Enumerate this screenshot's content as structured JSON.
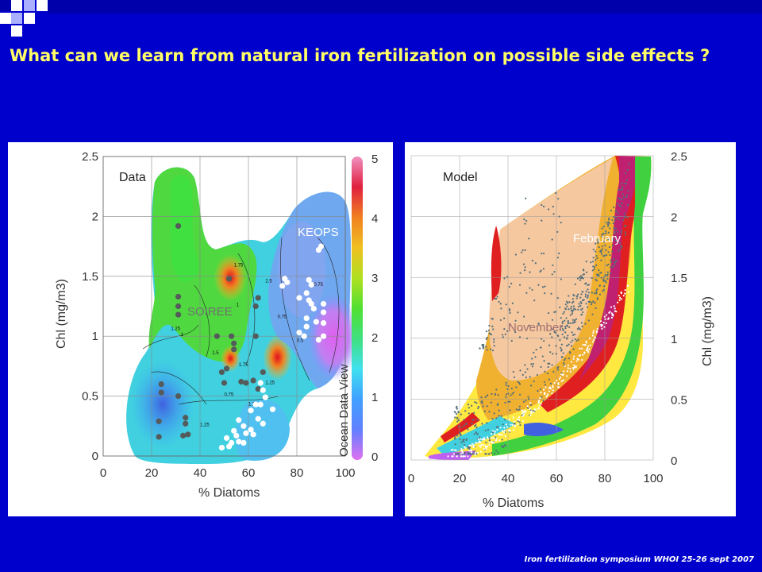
{
  "slide": {
    "title": "What can we learn from natural iron fertilization on possible side effects ?",
    "footer": "Iron fertilization symposium WHOI 25-26 sept 2007"
  },
  "colors": {
    "background": "#0000cc",
    "title": "#ffff66",
    "top_bar": "#0000aa"
  },
  "chart_data": [
    {
      "type": "scatter",
      "panel_label": "Data",
      "xlabel": "% Diatoms",
      "ylabel": "Chl (mg/m3)",
      "xlim": [
        0,
        100
      ],
      "ylim": [
        0,
        2.5
      ],
      "x_ticks": [
        "0",
        "20",
        "40",
        "60",
        "80",
        "100"
      ],
      "y_ticks": [
        "0",
        "0.5",
        "1",
        "1.5",
        "2",
        "2.5"
      ],
      "colorbar_ticks": [
        "0",
        "1",
        "2",
        "3",
        "4",
        "5"
      ],
      "colorbar_side_label": "Ocean Data View",
      "grid": true,
      "region_labels": [
        "SOIREE",
        "KEOPS"
      ],
      "contour_labels": [
        "0.75",
        "1",
        "1.25",
        "1.5",
        "1.75",
        "2.5",
        "1.75",
        "1.25",
        "0.5",
        "0.75",
        "1.75",
        "1.25",
        "1",
        "0.75"
      ],
      "series": [
        {
          "name": "SOIREE",
          "marker": "dark grey",
          "points": [
            [
              31,
              1.92
            ],
            [
              31,
              1.33
            ],
            [
              31,
              1.25
            ],
            [
              31,
              1.18
            ],
            [
              31,
              0.5
            ],
            [
              24,
              0.6
            ],
            [
              24,
              0.53
            ],
            [
              23,
              0.29
            ],
            [
              23,
              0.16
            ],
            [
              34,
              0.32
            ],
            [
              34,
              0.27
            ],
            [
              35,
              0.18
            ],
            [
              33,
              0.17
            ],
            [
              52,
              1.48
            ],
            [
              47,
              1.0
            ],
            [
              53,
              1.0
            ],
            [
              54,
              0.94
            ],
            [
              54,
              0.89
            ],
            [
              51,
              0.73
            ],
            [
              49,
              0.7
            ],
            [
              50,
              0.61
            ],
            [
              63,
              1.0
            ],
            [
              63,
              1.25
            ],
            [
              64,
              1.32
            ],
            [
              66,
              0.7
            ],
            [
              64,
              0.56
            ],
            [
              59,
              0.61
            ],
            [
              62,
              0.63
            ],
            [
              57,
              0.62
            ]
          ]
        },
        {
          "name": "KEOPS",
          "marker": "white",
          "points": [
            [
              89,
              1.72
            ],
            [
              90,
              1.75
            ],
            [
              75,
              1.48
            ],
            [
              76,
              1.45
            ],
            [
              74,
              1.42
            ],
            [
              81,
              1.32
            ],
            [
              85,
              1.47
            ],
            [
              86,
              1.43
            ],
            [
              84,
              1.36
            ],
            [
              85,
              1.3
            ],
            [
              86,
              1.27
            ],
            [
              87,
              1.23
            ],
            [
              91,
              1.27
            ],
            [
              91,
              1.2
            ],
            [
              91,
              1.11
            ],
            [
              84,
              1.15
            ],
            [
              81,
              1.03
            ],
            [
              84,
              1.08
            ],
            [
              88,
              1.12
            ],
            [
              83,
              1.0
            ],
            [
              91,
              1.0
            ],
            [
              89,
              0.97
            ],
            [
              65,
              0.61
            ],
            [
              66,
              0.55
            ],
            [
              67,
              0.49
            ],
            [
              65,
              0.43
            ],
            [
              63,
              0.43
            ],
            [
              61,
              0.38
            ],
            [
              64,
              0.31
            ],
            [
              66,
              0.27
            ],
            [
              70,
              0.39
            ],
            [
              56,
              0.3
            ],
            [
              58,
              0.25
            ],
            [
              59,
              0.19
            ],
            [
              55,
              0.17
            ],
            [
              56,
              0.12
            ],
            [
              58,
              0.11
            ],
            [
              54,
              0.21
            ],
            [
              51,
              0.15
            ],
            [
              53,
              0.11
            ],
            [
              52,
              0.08
            ],
            [
              49,
              0.07
            ],
            [
              61,
              0.22
            ],
            [
              62,
              0.18
            ]
          ]
        }
      ]
    },
    {
      "type": "scatter",
      "panel_label": "Model",
      "xlabel": "% Diatoms",
      "ylabel": "Chl (mg/m3)",
      "xlim": [
        0,
        100
      ],
      "ylim": [
        0,
        2.5
      ],
      "x_ticks": [
        "0",
        "20",
        "40",
        "60",
        "80",
        "100"
      ],
      "y_ticks": [
        "0",
        "0.5",
        "1",
        "1.5",
        "2",
        "2.5"
      ],
      "grid": true,
      "region_labels": [
        "February",
        "November"
      ],
      "series": [
        {
          "name": "February",
          "marker": "grey dots",
          "note_points_dense_cloud": true
        },
        {
          "name": "November",
          "marker": "white dots",
          "note_points_dense_cloud": true
        }
      ]
    }
  ]
}
